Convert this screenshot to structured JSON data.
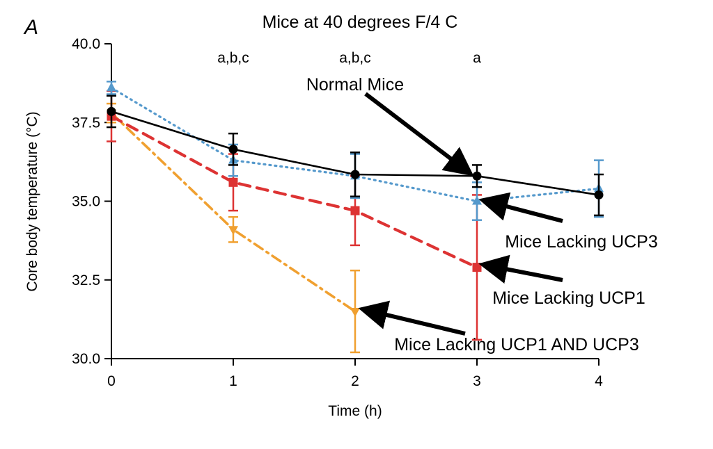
{
  "chart_data": {
    "type": "line",
    "panel_label": "A",
    "title": "Mice at 40 degrees F/4 C",
    "xlabel": "Time (h)",
    "ylabel": "Core body temperature (°C)",
    "xlim": [
      0,
      4
    ],
    "ylim": [
      30,
      40
    ],
    "x_ticks": [
      "0",
      "1",
      "2",
      "3",
      "4"
    ],
    "y_ticks": [
      "30.0",
      "32.5",
      "35.0",
      "37.5",
      "40.0"
    ],
    "grid": false,
    "significance_labels": [
      {
        "x": 1,
        "text": "a,b,c"
      },
      {
        "x": 2,
        "text": "a,b,c"
      },
      {
        "x": 3,
        "text": "a"
      }
    ],
    "series": [
      {
        "name": "Mice Lacking UCP1 AND UCP3",
        "color": "#F0A030",
        "line": "dashdot",
        "marker": "triangle-down",
        "x": [
          0,
          1,
          2
        ],
        "values": [
          37.8,
          34.1,
          31.5
        ],
        "err": [
          0.3,
          0.4,
          1.3
        ]
      },
      {
        "name": "Mice Lacking UCP1",
        "color": "#DD3333",
        "line": "dashed",
        "marker": "square",
        "x": [
          0,
          1,
          2,
          3
        ],
        "values": [
          37.7,
          35.6,
          34.7,
          32.9
        ],
        "err": [
          0.8,
          0.9,
          1.1,
          2.3
        ]
      },
      {
        "name": "Mice Lacking UCP3",
        "color": "#5599CC",
        "line": "dotted",
        "marker": "triangle-up",
        "x": [
          0,
          1,
          2,
          3,
          4
        ],
        "values": [
          38.6,
          36.3,
          35.8,
          35.0,
          35.4
        ],
        "err": [
          0.2,
          0.5,
          0.7,
          0.6,
          0.9
        ]
      },
      {
        "name": "Normal Mice",
        "color": "#000000",
        "line": "solid",
        "marker": "circle",
        "x": [
          0,
          1,
          2,
          3,
          4
        ],
        "values": [
          37.85,
          36.65,
          35.85,
          35.8,
          35.2
        ],
        "err": [
          0.5,
          0.5,
          0.7,
          0.35,
          0.65
        ]
      }
    ]
  },
  "annotations": [
    {
      "text": "Normal Mice",
      "target": "Normal Mice",
      "target_index": 3
    },
    {
      "text": "Mice Lacking UCP3",
      "target": "Mice Lacking UCP3",
      "target_index": 3
    },
    {
      "text": "Mice Lacking UCP1",
      "target": "Mice Lacking UCP1",
      "target_index": 3
    },
    {
      "text": "Mice Lacking UCP1 AND UCP3",
      "target": "Mice Lacking UCP1 AND UCP3",
      "target_index": 2
    }
  ]
}
